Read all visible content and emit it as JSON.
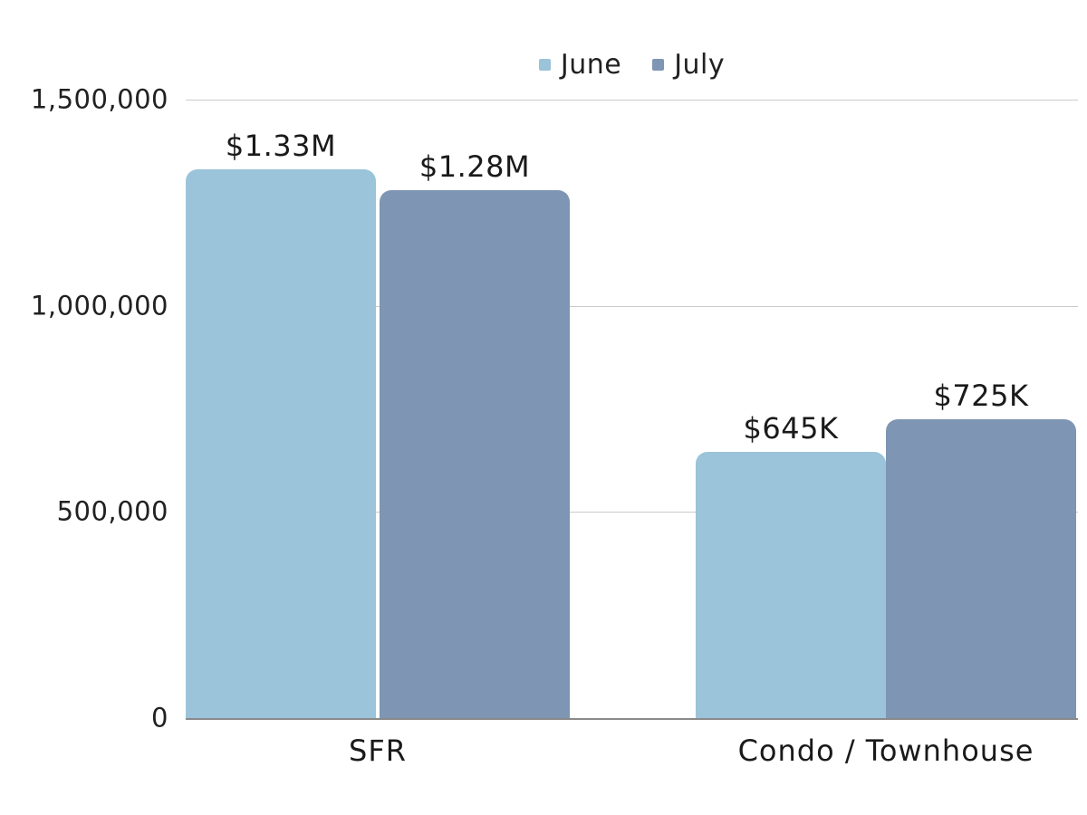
{
  "chart_data": {
    "type": "bar",
    "title": "",
    "categories": [
      "SFR",
      "Condo / Townhouse"
    ],
    "series": [
      {
        "name": "June",
        "color": "#9BC3DA",
        "values": [
          1330000,
          645000
        ],
        "data_labels": [
          "$1.33M",
          "$645K"
        ]
      },
      {
        "name": "July",
        "color": "#7E95B3",
        "values": [
          1280000,
          725000
        ],
        "data_labels": [
          "$1.28M",
          "$725K"
        ]
      }
    ],
    "ylim": [
      0,
      1500000
    ],
    "yticks": [
      {
        "value": 0,
        "label": "0"
      },
      {
        "value": 500000,
        "label": "500,000"
      },
      {
        "value": 1000000,
        "label": "1,000,000"
      },
      {
        "value": 1500000,
        "label": "1,500,000"
      }
    ],
    "grid": true,
    "legend_position": "top"
  },
  "colors": {
    "june_bar": "#9BC3DA",
    "july_bar": "#7E95B3",
    "gridline": "#CBCBCB",
    "axis_line": "#8A8A8A",
    "text": "#212121",
    "background": "#FFFFFF"
  }
}
